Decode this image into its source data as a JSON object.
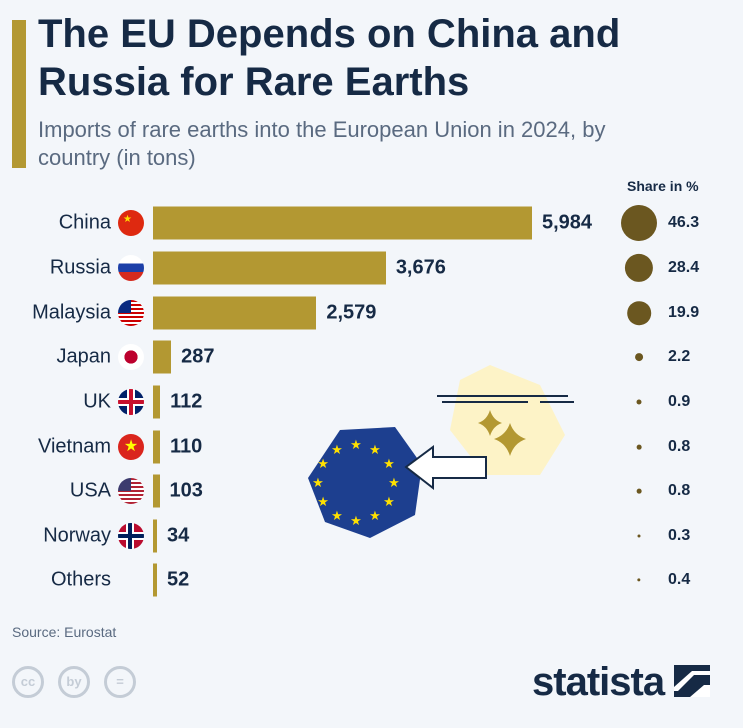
{
  "header": {
    "title": "The EU Depends on China and Russia for Rare Earths",
    "subtitle": "Imports of rare earths into the European Union in 2024, by country (in tons)"
  },
  "colors": {
    "bar": "#b39832",
    "dot": "#6b5720",
    "text": "#162a45",
    "eu_blue": "#1d3f8f",
    "eu_star": "#ffe000"
  },
  "chart_data": {
    "type": "bar",
    "orientation": "horizontal",
    "categories": [
      "China",
      "Russia",
      "Malaysia",
      "Japan",
      "UK",
      "Vietnam",
      "USA",
      "Norway",
      "Others"
    ],
    "values": [
      5984,
      3676,
      2579,
      287,
      112,
      110,
      103,
      34,
      52
    ],
    "value_labels": [
      "5,984",
      "3,676",
      "2,579",
      "287",
      "112",
      "110",
      "103",
      "34",
      "52"
    ],
    "share_title": "Share in %",
    "share_values": [
      46.3,
      28.4,
      19.9,
      2.2,
      0.9,
      0.8,
      0.8,
      0.3,
      0.4
    ],
    "share_labels": [
      "46.3",
      "28.4",
      "19.9",
      "2.2",
      "0.9",
      "0.8",
      "0.8",
      "0.3",
      "0.4"
    ],
    "flags": [
      "china-flag",
      "russia-flag",
      "malaysia-flag",
      "japan-flag",
      "uk-flag",
      "vietnam-flag",
      "usa-flag",
      "norway-flag",
      ""
    ]
  },
  "footer": {
    "source": "Source: Eurostat",
    "brand": "statista",
    "cc_icons": [
      "cc",
      "by",
      "="
    ]
  }
}
